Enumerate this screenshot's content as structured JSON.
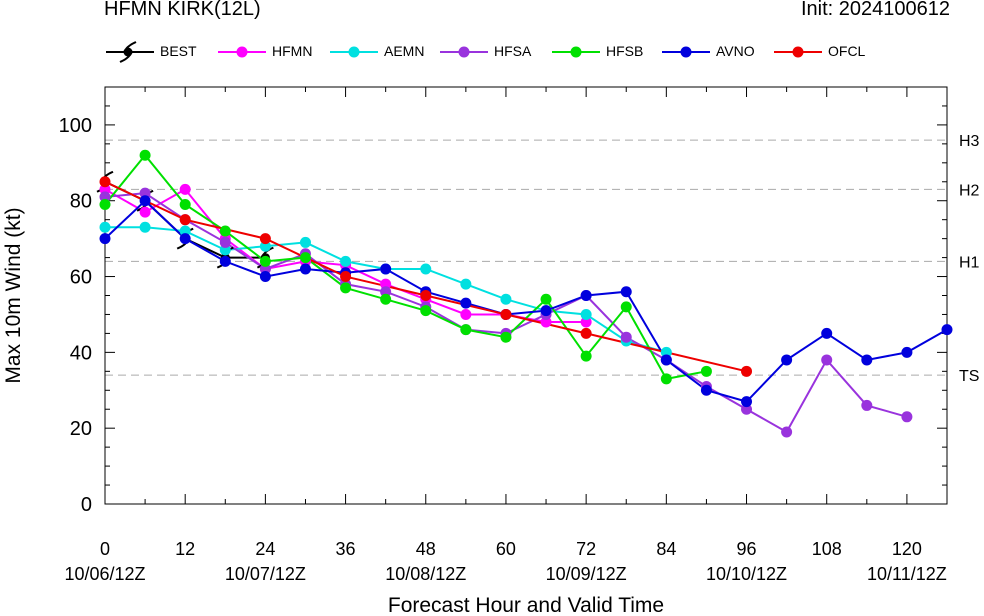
{
  "header": {
    "title": "HFMN KIRK(12L)",
    "init": "Init: 2024100612"
  },
  "chart_data": {
    "type": "line",
    "xlabel": "Forecast Hour and Valid Time",
    "ylabel": "Max 10m Wind (kt)",
    "xlim": [
      0,
      126
    ],
    "ylim": [
      0,
      110
    ],
    "x_ticks": [
      0,
      12,
      24,
      36,
      48,
      60,
      72,
      84,
      96,
      108,
      120
    ],
    "x_tick_labels": [
      "0",
      "12",
      "24",
      "36",
      "48",
      "60",
      "72",
      "84",
      "96",
      "108",
      "120"
    ],
    "valid_time_labels": [
      {
        "x": 0,
        "label": "10/06/12Z"
      },
      {
        "x": 24,
        "label": "10/07/12Z"
      },
      {
        "x": 48,
        "label": "10/08/12Z"
      },
      {
        "x": 72,
        "label": "10/09/12Z"
      },
      {
        "x": 96,
        "label": "10/10/12Z"
      },
      {
        "x": 120,
        "label": "10/11/12Z"
      }
    ],
    "y_ticks": [
      0,
      20,
      40,
      60,
      80,
      100
    ],
    "intensity_thresholds": [
      {
        "label": "TS",
        "value": 34
      },
      {
        "label": "H1",
        "value": 64
      },
      {
        "label": "H2",
        "value": 83
      },
      {
        "label": "H3",
        "value": 96
      }
    ],
    "series": [
      {
        "name": "BEST",
        "color": "#000000",
        "marker": "hurricane-symbol",
        "x": [
          0,
          6,
          12,
          18,
          24
        ],
        "y": [
          85,
          80,
          70,
          65,
          65
        ]
      },
      {
        "name": "HFMN",
        "color": "#ff00ff",
        "x": [
          0,
          6,
          12,
          18,
          24,
          30,
          36,
          42,
          48,
          54,
          60,
          66,
          72
        ],
        "y": [
          83,
          77,
          83,
          70,
          62,
          64,
          63,
          58,
          54,
          50,
          50,
          48,
          48
        ]
      },
      {
        "name": "AEMN",
        "color": "#00e0e0",
        "x": [
          0,
          6,
          12,
          18,
          24,
          30,
          36,
          42,
          48,
          54,
          60,
          66,
          72,
          78,
          84
        ],
        "y": [
          73,
          73,
          72,
          67,
          68,
          69,
          64,
          62,
          62,
          58,
          54,
          51,
          50,
          43,
          40
        ]
      },
      {
        "name": "HFSA",
        "color": "#9933dd",
        "x": [
          0,
          6,
          12,
          18,
          24,
          30,
          36,
          42,
          48,
          54,
          60,
          66,
          72,
          78,
          84,
          90,
          96,
          102,
          108,
          114,
          120
        ],
        "y": [
          81,
          82,
          75,
          69,
          62,
          66,
          58,
          56,
          52,
          46,
          45,
          50,
          55,
          44,
          38,
          31,
          25,
          19,
          38,
          26,
          23
        ]
      },
      {
        "name": "HFSB",
        "color": "#00e000",
        "x": [
          0,
          6,
          12,
          18,
          24,
          30,
          36,
          42,
          48,
          54,
          60,
          66,
          72,
          78,
          84,
          90
        ],
        "y": [
          79,
          92,
          79,
          72,
          64,
          65,
          57,
          54,
          51,
          46,
          44,
          54,
          39,
          52,
          33,
          35
        ]
      },
      {
        "name": "AVNO",
        "color": "#0000dd",
        "x": [
          0,
          6,
          12,
          18,
          24,
          30,
          36,
          42,
          48,
          54,
          60,
          66,
          72,
          78,
          84,
          90,
          96,
          102,
          108,
          114,
          120,
          126
        ],
        "y": [
          70,
          80,
          70,
          64,
          60,
          62,
          61,
          62,
          56,
          53,
          50,
          51,
          55,
          56,
          38,
          30,
          27,
          38,
          45,
          38,
          40,
          46
        ]
      },
      {
        "name": "OFCL",
        "color": "#ee0000",
        "x": [
          0,
          12,
          24,
          36,
          48,
          60,
          72,
          96
        ],
        "y": [
          85,
          75,
          70,
          60,
          55,
          50,
          45,
          35
        ]
      }
    ]
  }
}
